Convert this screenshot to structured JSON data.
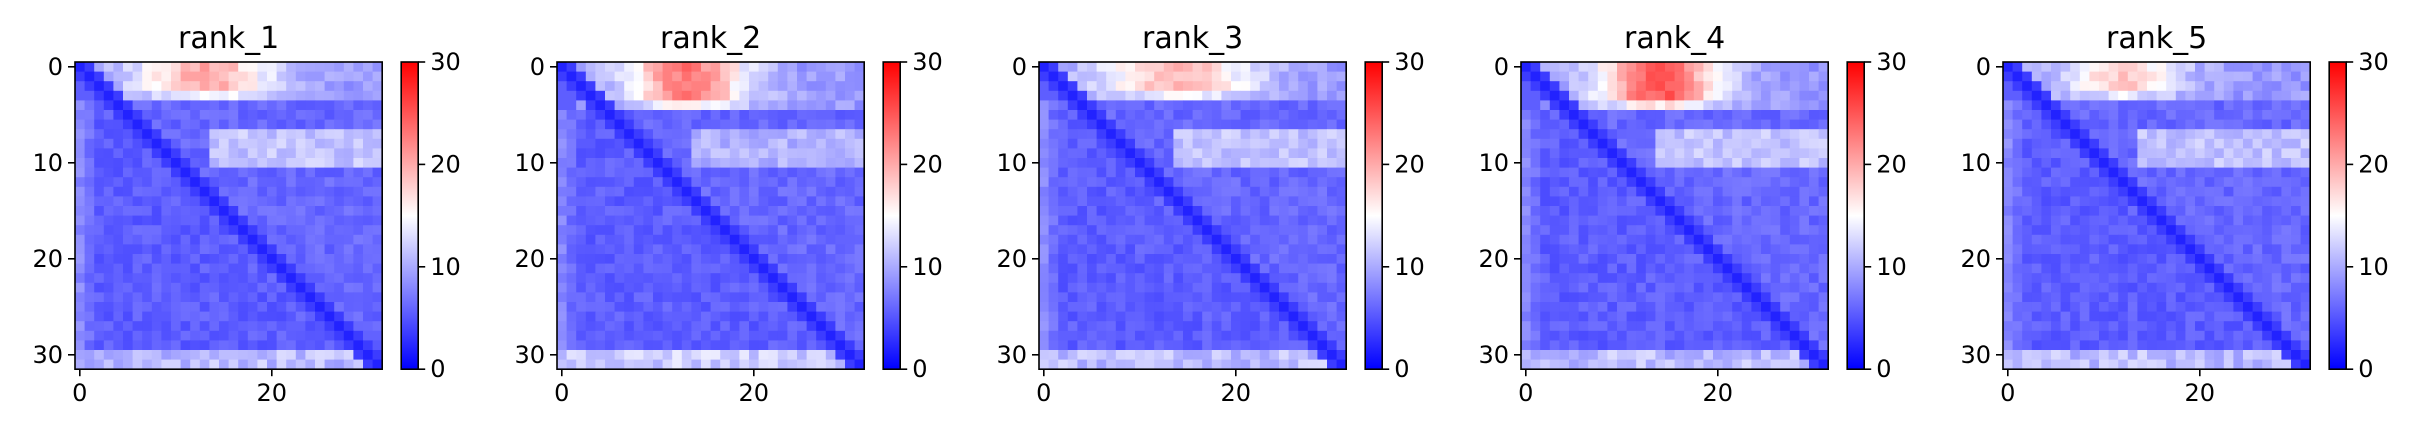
{
  "figure": {
    "type": "heatmap-grid",
    "cmap": "bwr"
  },
  "chart_data": [
    {
      "type": "heatmap",
      "title": "rank_1",
      "n": 32,
      "xticks": [
        0,
        20
      ],
      "yticks": [
        0,
        10,
        20,
        30
      ],
      "colorbar": {
        "min": 0,
        "max": 30,
        "ticks": [
          0,
          10,
          20,
          30
        ]
      },
      "pattern": {
        "top_peak": 20,
        "top_center": 13,
        "top_width": 7,
        "top_rows": 3,
        "mid_band": 12,
        "bottom": 11,
        "left": 8,
        "background": 5.5,
        "diagonal": 2
      }
    },
    {
      "type": "heatmap",
      "title": "rank_2",
      "n": 32,
      "xticks": [
        0,
        20
      ],
      "yticks": [
        0,
        10,
        20,
        30
      ],
      "colorbar": {
        "min": 0,
        "max": 30,
        "ticks": [
          0,
          10,
          20,
          30
        ]
      },
      "pattern": {
        "top_peak": 23,
        "top_center": 13,
        "top_width": 6,
        "top_rows": 3.5,
        "mid_band": 11,
        "bottom": 12,
        "left": 8,
        "background": 5.5,
        "diagonal": 2
      }
    },
    {
      "type": "heatmap",
      "title": "rank_3",
      "n": 32,
      "xticks": [
        0,
        20
      ],
      "yticks": [
        0,
        10,
        20,
        30
      ],
      "colorbar": {
        "min": 0,
        "max": 30,
        "ticks": [
          0,
          10,
          20,
          30
        ]
      },
      "pattern": {
        "top_peak": 19,
        "top_center": 14,
        "top_width": 8,
        "top_rows": 3,
        "mid_band": 12,
        "bottom": 11,
        "left": 8,
        "background": 5.5,
        "diagonal": 2
      }
    },
    {
      "type": "heatmap",
      "title": "rank_4",
      "n": 32,
      "xticks": [
        0,
        20
      ],
      "yticks": [
        0,
        10,
        20,
        30
      ],
      "colorbar": {
        "min": 0,
        "max": 30,
        "ticks": [
          0,
          10,
          20,
          30
        ]
      },
      "pattern": {
        "top_peak": 25,
        "top_center": 14,
        "top_width": 6,
        "top_rows": 3.5,
        "mid_band": 12,
        "bottom": 11,
        "left": 8,
        "background": 5.5,
        "diagonal": 2
      }
    },
    {
      "type": "heatmap",
      "title": "rank_5",
      "n": 32,
      "xticks": [
        0,
        20
      ],
      "yticks": [
        0,
        10,
        20,
        30
      ],
      "colorbar": {
        "min": 0,
        "max": 30,
        "ticks": [
          0,
          10,
          20,
          30
        ]
      },
      "pattern": {
        "top_peak": 18,
        "top_center": 12,
        "top_width": 6,
        "top_rows": 2.5,
        "mid_band": 12,
        "bottom": 11,
        "left": 8,
        "background": 5.5,
        "diagonal": 2
      }
    }
  ]
}
